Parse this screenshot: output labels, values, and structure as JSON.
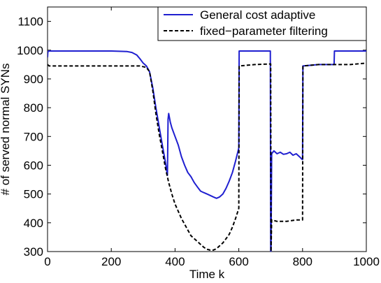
{
  "chart_data": {
    "type": "line",
    "title": "",
    "xlabel": "Time k",
    "ylabel": "# of served normal SYNs",
    "xlim": [
      0,
      1000
    ],
    "ylim": [
      300,
      1150
    ],
    "xticks": [
      0,
      200,
      400,
      600,
      800,
      1000
    ],
    "yticks": [
      300,
      400,
      500,
      600,
      700,
      800,
      900,
      1000,
      1100
    ],
    "grid": false,
    "legend_position": "top-right",
    "series": [
      {
        "name": "General cost adaptive",
        "color": "#1f1fd0",
        "dash": "solid",
        "x": [
          0,
          1,
          5,
          100,
          200,
          250,
          265,
          280,
          290,
          300,
          310,
          320,
          330,
          340,
          350,
          360,
          370,
          376,
          378,
          380,
          385,
          390,
          400,
          410,
          420,
          430,
          440,
          450,
          460,
          470,
          480,
          490,
          500,
          510,
          520,
          530,
          540,
          550,
          560,
          570,
          580,
          590,
          600,
          601,
          620,
          640,
          660,
          680,
          699,
          700,
          701,
          703,
          710,
          720,
          730,
          740,
          750,
          760,
          770,
          780,
          790,
          799,
          800,
          801,
          850,
          899,
          900,
          950,
          1000
        ],
        "y": [
          975,
          995,
          997,
          997,
          997,
          995,
          992,
          983,
          970,
          955,
          945,
          925,
          870,
          800,
          735,
          670,
          610,
          565,
          760,
          780,
          750,
          730,
          700,
          670,
          630,
          600,
          575,
          560,
          540,
          525,
          510,
          505,
          500,
          495,
          490,
          485,
          490,
          500,
          520,
          545,
          575,
          615,
          660,
          997,
          997,
          997,
          997,
          997,
          997,
          300,
          300,
          640,
          650,
          640,
          645,
          638,
          640,
          645,
          635,
          640,
          630,
          620,
          620,
          945,
          950,
          950,
          997,
          997,
          997
        ]
      },
      {
        "name": "fixed−parameter filtering",
        "color": "#000000",
        "dash": "dashed",
        "x": [
          0,
          5,
          100,
          200,
          260,
          290,
          310,
          320,
          330,
          340,
          350,
          360,
          370,
          380,
          390,
          400,
          410,
          420,
          430,
          440,
          450,
          460,
          470,
          480,
          490,
          500,
          510,
          520,
          530,
          540,
          550,
          560,
          570,
          580,
          590,
          600,
          601,
          650,
          699,
          700,
          701,
          703,
          720,
          750,
          780,
          799,
          800,
          801,
          850,
          900,
          950,
          1000
        ],
        "y": [
          950,
          945,
          945,
          945,
          945,
          945,
          940,
          925,
          860,
          780,
          710,
          650,
          590,
          540,
          500,
          465,
          440,
          415,
          395,
          375,
          355,
          345,
          335,
          325,
          315,
          308,
          305,
          305,
          310,
          320,
          330,
          345,
          360,
          385,
          415,
          450,
          945,
          950,
          952,
          952,
          300,
          410,
          405,
          405,
          410,
          410,
          410,
          945,
          950,
          950,
          950,
          955
        ]
      }
    ]
  }
}
